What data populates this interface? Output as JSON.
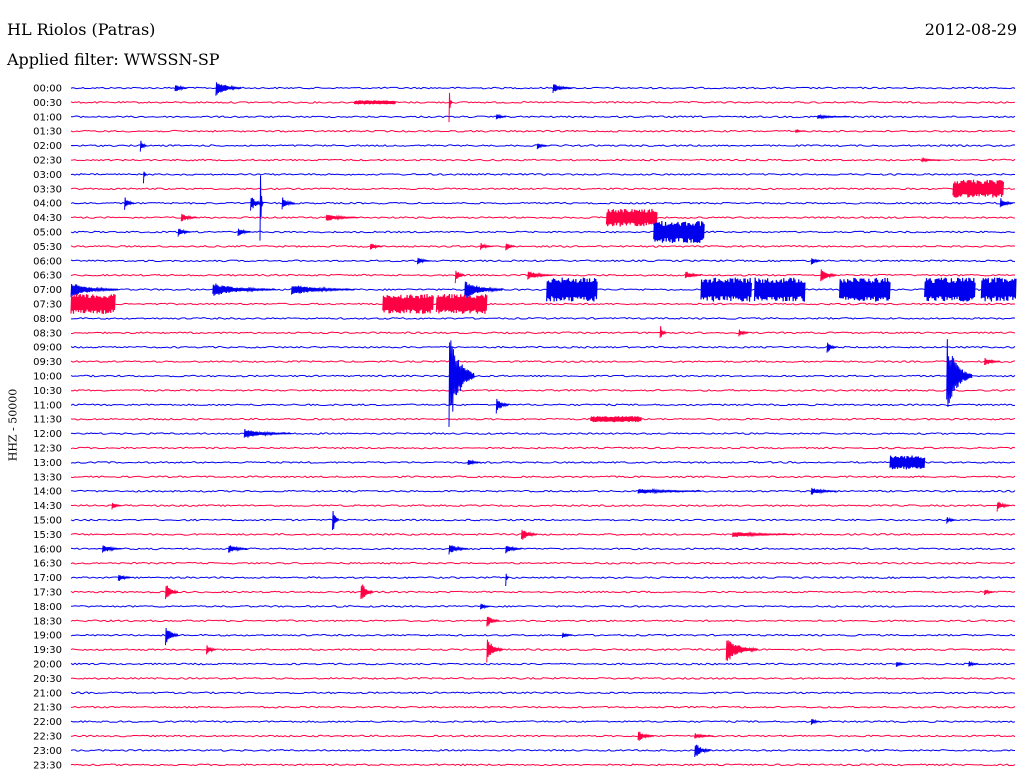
{
  "header": {
    "station": "HL Riolos (Patras)",
    "date": "2012-08-29",
    "filter_label": "Applied filter: WWSSN-SP"
  },
  "colors": {
    "blue": "#0000ee",
    "red": "#ff0044"
  },
  "chart_data": {
    "type": "line",
    "title": "HL Riolos (Patras)",
    "ylabel": "HHZ - 50000",
    "row_labels": [
      "00:00",
      "00:30",
      "01:00",
      "01:30",
      "02:00",
      "02:30",
      "03:00",
      "03:30",
      "04:00",
      "04:30",
      "05:00",
      "05:30",
      "06:00",
      "06:30",
      "07:00",
      "07:30",
      "08:00",
      "08:30",
      "09:00",
      "09:30",
      "10:00",
      "10:30",
      "11:00",
      "11:30",
      "12:00",
      "12:30",
      "13:00",
      "13:30",
      "14:00",
      "14:30",
      "15:00",
      "15:30",
      "16:00",
      "16:30",
      "17:00",
      "17:30",
      "18:00",
      "18:30",
      "19:00",
      "19:30",
      "20:00",
      "20:30",
      "21:00",
      "21:30",
      "22:00",
      "22:30",
      "23:00",
      "23:30"
    ],
    "x_unit": "minutes",
    "x_range": [
      0,
      30
    ],
    "events": [
      {
        "row": 0,
        "t": 3.3,
        "amp": 5,
        "len": 0.4
      },
      {
        "row": 0,
        "t": 4.6,
        "amp": 9,
        "len": 0.8
      },
      {
        "row": 0,
        "t": 15.3,
        "amp": 5,
        "len": 0.6
      },
      {
        "row": 1,
        "t": 9.0,
        "amp": 2,
        "len": 1.3,
        "burst": true
      },
      {
        "row": 1,
        "t": 12.0,
        "amp": 22,
        "len": 0.1,
        "spike": true
      },
      {
        "row": 2,
        "t": 13.5,
        "amp": 4,
        "len": 0.3
      },
      {
        "row": 2,
        "t": 23.7,
        "amp": 2,
        "len": 1.0
      },
      {
        "row": 3,
        "t": 23.0,
        "amp": 2,
        "len": 0.3
      },
      {
        "row": 4,
        "t": 2.2,
        "amp": 7,
        "len": 0.2
      },
      {
        "row": 4,
        "t": 14.8,
        "amp": 4,
        "len": 0.3
      },
      {
        "row": 5,
        "t": 27.0,
        "amp": 2,
        "len": 0.6
      },
      {
        "row": 6,
        "t": 2.3,
        "amp": 9,
        "len": 0.1,
        "spike": true
      },
      {
        "row": 7,
        "t": 28.0,
        "amp": 9,
        "len": 1.6,
        "burst": true
      },
      {
        "row": 8,
        "t": 1.7,
        "amp": 8,
        "len": 0.3
      },
      {
        "row": 8,
        "t": 5.7,
        "amp": 9,
        "len": 0.4
      },
      {
        "row": 8,
        "t": 6.0,
        "amp": 60,
        "len": 0.1,
        "spike": true
      },
      {
        "row": 8,
        "t": 6.7,
        "amp": 7,
        "len": 0.4
      },
      {
        "row": 8,
        "t": 29.5,
        "amp": 6,
        "len": 0.4
      },
      {
        "row": 9,
        "t": 3.5,
        "amp": 5,
        "len": 0.5
      },
      {
        "row": 9,
        "t": 8.1,
        "amp": 4,
        "len": 1.0
      },
      {
        "row": 9,
        "t": 17.0,
        "amp": 9,
        "len": 1.6,
        "burst": true
      },
      {
        "row": 10,
        "t": 3.4,
        "amp": 5,
        "len": 0.4
      },
      {
        "row": 10,
        "t": 5.3,
        "amp": 5,
        "len": 0.4
      },
      {
        "row": 10,
        "t": 18.5,
        "amp": 11,
        "len": 1.6,
        "burst": true
      },
      {
        "row": 11,
        "t": 9.5,
        "amp": 4,
        "len": 0.4
      },
      {
        "row": 11,
        "t": 13.0,
        "amp": 4,
        "len": 0.4
      },
      {
        "row": 11,
        "t": 13.8,
        "amp": 5,
        "len": 0.3
      },
      {
        "row": 12,
        "t": 11.0,
        "amp": 4,
        "len": 0.4
      },
      {
        "row": 12,
        "t": 23.5,
        "amp": 5,
        "len": 0.3
      },
      {
        "row": 13,
        "t": 12.2,
        "amp": 8,
        "len": 0.3
      },
      {
        "row": 13,
        "t": 14.5,
        "amp": 5,
        "len": 0.8
      },
      {
        "row": 13,
        "t": 19.5,
        "amp": 5,
        "len": 0.5
      },
      {
        "row": 13,
        "t": 23.8,
        "amp": 8,
        "len": 0.5
      },
      {
        "row": 14,
        "t": 0.0,
        "amp": 8,
        "len": 1.5
      },
      {
        "row": 14,
        "t": 4.5,
        "amp": 7,
        "len": 2.0
      },
      {
        "row": 14,
        "t": 7.0,
        "amp": 6,
        "len": 2.0
      },
      {
        "row": 14,
        "t": 12.5,
        "amp": 10,
        "len": 1.2
      },
      {
        "row": 14,
        "t": 15.1,
        "amp": 12,
        "len": 1.6,
        "burst": true
      },
      {
        "row": 14,
        "t": 20.0,
        "amp": 12,
        "len": 1.6,
        "burst": true
      },
      {
        "row": 14,
        "t": 21.7,
        "amp": 12,
        "len": 1.6,
        "burst": true
      },
      {
        "row": 14,
        "t": 24.4,
        "amp": 12,
        "len": 1.6,
        "burst": true
      },
      {
        "row": 14,
        "t": 27.1,
        "amp": 12,
        "len": 1.6,
        "burst": true
      },
      {
        "row": 14,
        "t": 28.9,
        "amp": 12,
        "len": 1.6,
        "burst": true
      },
      {
        "row": 15,
        "t": 0.0,
        "amp": 10,
        "len": 1.4,
        "burst": true
      },
      {
        "row": 15,
        "t": 9.9,
        "amp": 10,
        "len": 1.6,
        "burst": true
      },
      {
        "row": 15,
        "t": 11.6,
        "amp": 10,
        "len": 1.6,
        "burst": true
      },
      {
        "row": 17,
        "t": 18.7,
        "amp": 9,
        "len": 0.2
      },
      {
        "row": 17,
        "t": 21.2,
        "amp": 5,
        "len": 0.3
      },
      {
        "row": 18,
        "t": 24.0,
        "amp": 7,
        "len": 0.3
      },
      {
        "row": 19,
        "t": 29.0,
        "amp": 5,
        "len": 0.5
      },
      {
        "row": 20,
        "t": 12.0,
        "amp": 55,
        "len": 0.8
      },
      {
        "row": 20,
        "t": 27.8,
        "amp": 40,
        "len": 0.8
      },
      {
        "row": 22,
        "t": 13.5,
        "amp": 9,
        "len": 0.4
      },
      {
        "row": 23,
        "t": 16.5,
        "amp": 3,
        "len": 1.6,
        "burst": true
      },
      {
        "row": 24,
        "t": 5.5,
        "amp": 5,
        "len": 1.5
      },
      {
        "row": 26,
        "t": 12.6,
        "amp": 4,
        "len": 0.4
      },
      {
        "row": 26,
        "t": 26.0,
        "amp": 7,
        "len": 1.1,
        "burst": true
      },
      {
        "row": 28,
        "t": 18.0,
        "amp": 3,
        "len": 2.0
      },
      {
        "row": 28,
        "t": 23.5,
        "amp": 4,
        "len": 0.8
      },
      {
        "row": 29,
        "t": 1.3,
        "amp": 4,
        "len": 0.3
      },
      {
        "row": 29,
        "t": 29.4,
        "amp": 6,
        "len": 0.4
      },
      {
        "row": 30,
        "t": 8.3,
        "amp": 17,
        "len": 0.2
      },
      {
        "row": 30,
        "t": 27.8,
        "amp": 4,
        "len": 0.3
      },
      {
        "row": 31,
        "t": 14.3,
        "amp": 8,
        "len": 0.5
      },
      {
        "row": 31,
        "t": 21.0,
        "amp": 3,
        "len": 2.0
      },
      {
        "row": 32,
        "t": 1.0,
        "amp": 5,
        "len": 0.6
      },
      {
        "row": 32,
        "t": 5.0,
        "amp": 5,
        "len": 0.6
      },
      {
        "row": 32,
        "t": 12.0,
        "amp": 6,
        "len": 0.6
      },
      {
        "row": 32,
        "t": 13.8,
        "amp": 5,
        "len": 0.5
      },
      {
        "row": 34,
        "t": 1.5,
        "amp": 5,
        "len": 0.4
      },
      {
        "row": 34,
        "t": 13.8,
        "amp": 12,
        "len": 0.1,
        "spike": true
      },
      {
        "row": 35,
        "t": 3.0,
        "amp": 11,
        "len": 0.4
      },
      {
        "row": 35,
        "t": 9.2,
        "amp": 12,
        "len": 0.4
      },
      {
        "row": 35,
        "t": 29.0,
        "amp": 4,
        "len": 0.3
      },
      {
        "row": 36,
        "t": 13.0,
        "amp": 4,
        "len": 0.3
      },
      {
        "row": 37,
        "t": 13.2,
        "amp": 7,
        "len": 0.4
      },
      {
        "row": 38,
        "t": 3.0,
        "amp": 12,
        "len": 0.4
      },
      {
        "row": 38,
        "t": 15.6,
        "amp": 4,
        "len": 0.3
      },
      {
        "row": 39,
        "t": 4.3,
        "amp": 6,
        "len": 0.3
      },
      {
        "row": 39,
        "t": 13.2,
        "amp": 13,
        "len": 0.5
      },
      {
        "row": 39,
        "t": 20.8,
        "amp": 14,
        "len": 1.0
      },
      {
        "row": 40,
        "t": 26.2,
        "amp": 4,
        "len": 0.3
      },
      {
        "row": 40,
        "t": 28.5,
        "amp": 4,
        "len": 0.3
      },
      {
        "row": 44,
        "t": 23.5,
        "amp": 4,
        "len": 0.3
      },
      {
        "row": 45,
        "t": 18.0,
        "amp": 6,
        "len": 0.5
      },
      {
        "row": 45,
        "t": 19.8,
        "amp": 3,
        "len": 0.6
      },
      {
        "row": 46,
        "t": 19.8,
        "amp": 9,
        "len": 0.5
      }
    ]
  }
}
